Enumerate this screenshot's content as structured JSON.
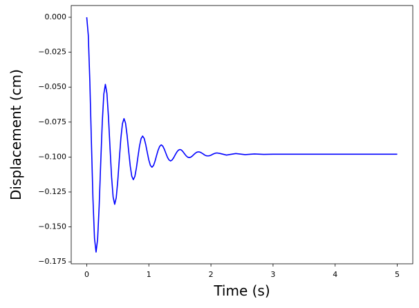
{
  "chart_data": {
    "type": "line",
    "xlabel": "Time (s)",
    "ylabel": "Displacement (cm)",
    "x": [
      0,
      0.025,
      0.05,
      0.075,
      0.1,
      0.125,
      0.15,
      0.175,
      0.2,
      0.225,
      0.25,
      0.275,
      0.3,
      0.325,
      0.35,
      0.375,
      0.4,
      0.425,
      0.45,
      0.475,
      0.5,
      0.525,
      0.55,
      0.575,
      0.6,
      0.625,
      0.65,
      0.675,
      0.7,
      0.725,
      0.75,
      0.775,
      0.8,
      0.825,
      0.85,
      0.875,
      0.9,
      0.925,
      0.95,
      0.975,
      1,
      1.025,
      1.05,
      1.075,
      1.1,
      1.125,
      1.15,
      1.175,
      1.2,
      1.225,
      1.25,
      1.275,
      1.3,
      1.325,
      1.35,
      1.375,
      1.4,
      1.425,
      1.45,
      1.475,
      1.5,
      1.525,
      1.55,
      1.575,
      1.6,
      1.625,
      1.65,
      1.675,
      1.7,
      1.725,
      1.75,
      1.775,
      1.8,
      1.825,
      1.85,
      1.875,
      1.9,
      1.925,
      1.95,
      1.975,
      2,
      2.025,
      2.05,
      2.075,
      2.1,
      2.15,
      2.25,
      2.4,
      2.55,
      2.7,
      2.85,
      3,
      4,
      5
    ],
    "series": [
      {
        "color": "#0000ff",
        "values": [
          0,
          -0.0128,
          -0.0461,
          -0.0891,
          -0.1299,
          -0.1582,
          -0.168,
          -0.1589,
          -0.1351,
          -0.1043,
          -0.0752,
          -0.055,
          -0.048,
          -0.0545,
          -0.0715,
          -0.0935,
          -0.1143,
          -0.1287,
          -0.1338,
          -0.1291,
          -0.1169,
          -0.1012,
          -0.0864,
          -0.0761,
          -0.0725,
          -0.0758,
          -0.0845,
          -0.0957,
          -0.1063,
          -0.1137,
          -0.1162,
          -0.1139,
          -0.1077,
          -0.0997,
          -0.0921,
          -0.0868,
          -0.085,
          -0.0867,
          -0.0911,
          -0.0968,
          -0.1022,
          -0.106,
          -0.1073,
          -0.1061,
          -0.1029,
          -0.0988,
          -0.095,
          -0.0923,
          -0.0913,
          -0.0922,
          -0.0945,
          -0.0974,
          -0.1002,
          -0.1021,
          -0.1028,
          -0.1021,
          -0.1005,
          -0.0984,
          -0.0965,
          -0.0951,
          -0.0946,
          -0.095,
          -0.0962,
          -0.0977,
          -0.0991,
          -0.1001,
          -0.1004,
          -0.1001,
          -0.0993,
          -0.0982,
          -0.0972,
          -0.0965,
          -0.0963,
          -0.0965,
          -0.0971,
          -0.0978,
          -0.0986,
          -0.0991,
          -0.0992,
          -0.0991,
          -0.0987,
          -0.0981,
          -0.0976,
          -0.0972,
          -0.0971,
          -0.0975,
          -0.0986,
          -0.0975,
          -0.0983,
          -0.0978,
          -0.0981,
          -0.098,
          -0.098,
          -0.098
        ]
      }
    ],
    "xlim": [
      -0.25,
      5.25
    ],
    "xticks": [
      0,
      1,
      2,
      3,
      4,
      5
    ],
    "ylim": [
      -0.1764,
      0.0084
    ],
    "yticks": [
      {
        "value": 0,
        "label": "0.000"
      },
      {
        "value": -0.025,
        "label": "−0.025"
      },
      {
        "value": -0.05,
        "label": "−0.050"
      },
      {
        "value": -0.075,
        "label": "−0.075"
      },
      {
        "value": -0.1,
        "label": "−0.100"
      },
      {
        "value": -0.125,
        "label": "−0.125"
      },
      {
        "value": -0.15,
        "label": "−0.150"
      },
      {
        "value": -0.175,
        "label": "−0.175"
      }
    ]
  }
}
